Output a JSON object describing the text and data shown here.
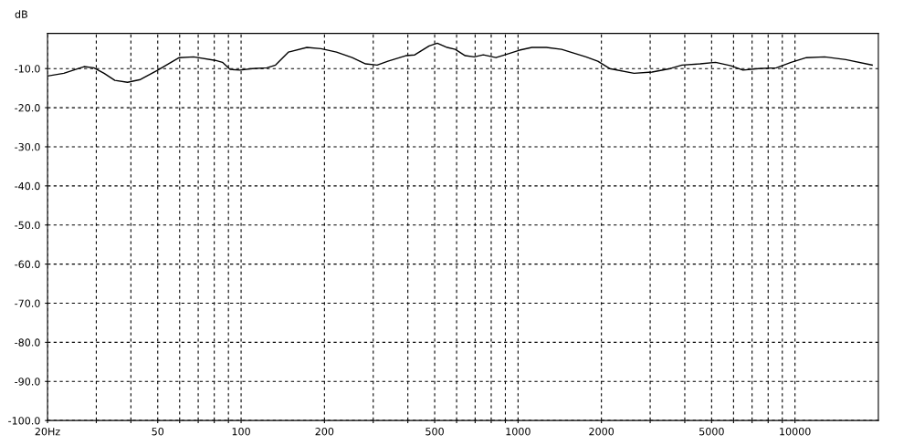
{
  "chart_data": {
    "type": "line",
    "ylabel": "dB",
    "x": [
      20,
      22.9,
      27.1,
      29.4,
      32.0,
      35.0,
      38.9,
      43.3,
      49.7,
      59.8,
      67.4,
      80.7,
      85.6,
      91.2,
      98.9,
      109.9,
      123.9,
      133.2,
      148.1,
      151.7,
      172.8,
      194.3,
      221.0,
      251.8,
      281.5,
      309.9,
      338.9,
      393.1,
      423.6,
      477.5,
      510.9,
      555.1,
      593.3,
      644.3,
      694.7,
      749.0,
      832.1,
      897.0,
      1011,
      1122,
      1265,
      1437,
      1585,
      1759,
      1941,
      2142,
      2623,
      3048,
      3543,
      3909,
      4545,
      5166,
      5875,
      6487,
      7373,
      8569,
      9680,
      11000,
      12800,
      15260,
      19000
    ],
    "series": [
      {
        "color": "#000000",
        "values": [
          -11.9,
          -11.2,
          -9.5,
          -9.8,
          -11.2,
          -13.0,
          -13.5,
          -12.8,
          -10.5,
          -7.2,
          -7.0,
          -7.9,
          -8.4,
          -10.2,
          -10.4,
          -10.0,
          -9.8,
          -9.1,
          -5.8,
          -5.6,
          -4.6,
          -4.9,
          -5.8,
          -7.2,
          -8.8,
          -9.1,
          -8.1,
          -6.7,
          -6.5,
          -4.2,
          -3.5,
          -4.6,
          -5.1,
          -6.7,
          -7.0,
          -6.5,
          -7.2,
          -6.5,
          -5.3,
          -4.6,
          -4.6,
          -5.1,
          -6.0,
          -7.0,
          -8.1,
          -10.0,
          -11.2,
          -10.9,
          -10.0,
          -9.1,
          -8.8,
          -8.4,
          -9.3,
          -10.4,
          -10.0,
          -9.8,
          -8.4,
          -7.2,
          -7.0,
          -7.7,
          -9.1
        ]
      }
    ],
    "log": "x",
    "xlim": [
      20,
      20000
    ],
    "ylim": [
      -100,
      -1
    ],
    "xticks": [
      {
        "value": 20,
        "label": "20Hz"
      },
      {
        "value": 30,
        "label": null
      },
      {
        "value": 40,
        "label": null
      },
      50,
      {
        "value": 60,
        "label": null
      },
      {
        "value": 70,
        "label": null
      },
      {
        "value": 80,
        "label": null
      },
      {
        "value": 90,
        "label": null
      },
      100,
      200,
      {
        "value": 300,
        "label": null
      },
      {
        "value": 400,
        "label": null
      },
      500,
      {
        "value": 600,
        "label": null
      },
      {
        "value": 700,
        "label": null
      },
      {
        "value": 800,
        "label": null
      },
      {
        "value": 900,
        "label": null
      },
      1000,
      2000,
      {
        "value": 3000,
        "label": null
      },
      {
        "value": 4000,
        "label": null
      },
      5000,
      {
        "value": 6000,
        "label": null
      },
      {
        "value": 7000,
        "label": null
      },
      {
        "value": 8000,
        "label": null
      },
      {
        "value": 9000,
        "label": null
      },
      10000
    ],
    "yticks": [
      {
        "value": -100,
        "label": "-100.0"
      },
      {
        "value": -90,
        "label": "-90.0"
      },
      {
        "value": -80,
        "label": "-80.0"
      },
      {
        "value": -70,
        "label": "-70.0"
      },
      {
        "value": -60,
        "label": "-60.0"
      },
      {
        "value": -50,
        "label": "-50.0"
      },
      {
        "value": -40,
        "label": "-40.0"
      },
      {
        "value": -30,
        "label": "-30.0"
      },
      {
        "value": -20,
        "label": "-20.0"
      },
      {
        "value": -10,
        "label": "-10.0"
      }
    ],
    "grid": true,
    "line_style": "solid",
    "marker": "none",
    "legend": false
  }
}
